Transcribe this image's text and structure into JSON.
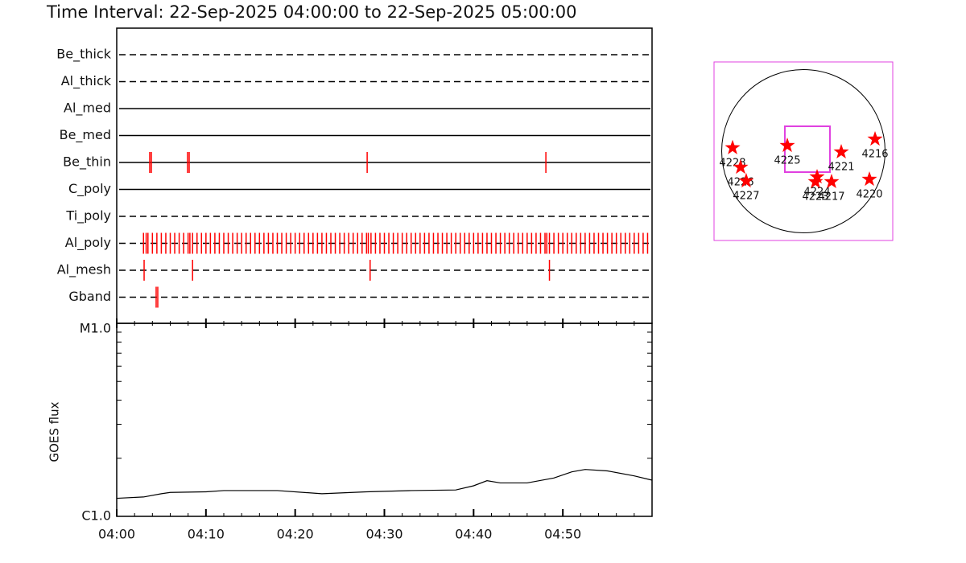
{
  "chart_data": [
    {
      "type": "timeline",
      "title": "Time Interval: 22-Sep-2025 04:00:00 to 22-Sep-2025 05:00:00",
      "xlim": [
        0,
        60
      ],
      "color": "#ff0000",
      "series": [
        {
          "name": "Be_thick",
          "line": "dashed",
          "values": []
        },
        {
          "name": "Al_thick",
          "line": "dashed",
          "values": []
        },
        {
          "name": "Al_med",
          "line": "solid",
          "values": []
        },
        {
          "name": "Be_med",
          "line": "solid",
          "values": []
        },
        {
          "name": "Be_thin",
          "line": "solid",
          "values": [
            3.7,
            3.88,
            7.94,
            8.12,
            28.07,
            48.1
          ]
        },
        {
          "name": "C_poly",
          "line": "solid",
          "values": []
        },
        {
          "name": "Ti_poly",
          "line": "dashed",
          "values": []
        },
        {
          "name": "Al_poly",
          "line": "dashed",
          "values": [
            3,
            3.3,
            3.5,
            4,
            4.5,
            5,
            5.5,
            6,
            6.5,
            7,
            7.5,
            8,
            8.2,
            8.5,
            9,
            9.5,
            10,
            10.5,
            11,
            11.5,
            12,
            12.5,
            13,
            13.5,
            14,
            14.5,
            15,
            15.5,
            16,
            16.5,
            17,
            17.5,
            18,
            18.5,
            19,
            19.5,
            20,
            20.5,
            21,
            21.5,
            22,
            22.5,
            23,
            23.5,
            24,
            24.5,
            25,
            25.5,
            26,
            26.5,
            27,
            27.5,
            28,
            28.2,
            28.5,
            29,
            29.5,
            30,
            30.5,
            31,
            31.5,
            32,
            32.5,
            33,
            33.5,
            34,
            34.5,
            35,
            35.5,
            36,
            36.5,
            37,
            37.5,
            38,
            38.5,
            39,
            39.5,
            40,
            40.5,
            41,
            41.5,
            42,
            42.5,
            43,
            43.5,
            44,
            44.5,
            45,
            45.5,
            46,
            46.5,
            47,
            47.5,
            48,
            48.2,
            48.5,
            49,
            49.5,
            50,
            50.5,
            51,
            51.5,
            52,
            52.5,
            53,
            53.5,
            54,
            54.5,
            55,
            55.5,
            56,
            56.5,
            57,
            57.5,
            58,
            58.5,
            59,
            59.5
          ]
        },
        {
          "name": "Al_mesh",
          "line": "dashed",
          "values": [
            3.07,
            8.5,
            28.4,
            48.5
          ]
        },
        {
          "name": "Gband",
          "line": "dashed",
          "values": [
            4.42,
            4.6
          ]
        }
      ]
    },
    {
      "type": "line",
      "y_label": "GOES flux",
      "log_y": true,
      "color": "#000000",
      "xlim": [
        0,
        60
      ],
      "xticks": [
        {
          "value": 0,
          "label": "04:00"
        },
        {
          "value": 10,
          "label": "04:10"
        },
        {
          "value": 20,
          "label": "04:20"
        },
        {
          "value": 30,
          "label": "04:30"
        },
        {
          "value": 40,
          "label": "04:40"
        },
        {
          "value": 50,
          "label": "04:50"
        }
      ],
      "xminor": [
        2,
        4,
        6,
        8,
        12,
        14,
        16,
        18,
        22,
        24,
        26,
        28,
        32,
        34,
        36,
        38,
        42,
        44,
        46,
        48,
        52,
        54,
        56,
        58
      ],
      "ylim": [
        1e-06,
        1e-05
      ],
      "yticks": [
        {
          "value": 1e-06,
          "label": "C1.0"
        },
        {
          "value": 1e-05,
          "label": "M1.0"
        }
      ],
      "yminor": [
        2e-06,
        3e-06,
        4e-06,
        5e-06,
        6e-06,
        7e-06,
        8e-06,
        9e-06
      ],
      "x": [
        0,
        3,
        5,
        6,
        10,
        12,
        18,
        23,
        28,
        33,
        38,
        40,
        41.5,
        43,
        46,
        49,
        51,
        52.5,
        55,
        58,
        60
      ],
      "values": [
        1.24e-06,
        1.26e-06,
        1.31e-06,
        1.33e-06,
        1.34e-06,
        1.36e-06,
        1.36e-06,
        1.31e-06,
        1.34e-06,
        1.36e-06,
        1.37e-06,
        1.44e-06,
        1.53e-06,
        1.49e-06,
        1.49e-06,
        1.58e-06,
        1.7e-06,
        1.75e-06,
        1.72e-06,
        1.62e-06,
        1.54e-06
      ]
    },
    {
      "type": "map",
      "xlim": [
        -1050,
        1050
      ],
      "ylim": [
        -1050,
        1050
      ],
      "radius": 960,
      "color": "#ff0000",
      "box_color": "#e040e0",
      "fov": {
        "x": [
          -218,
          312
        ],
        "y": [
          -246,
          293
        ]
      },
      "labels": [
        "4228",
        "4226",
        "4227",
        "4225",
        "4221",
        "4216",
        "4224",
        "4223",
        "4217",
        "4220"
      ],
      "x": [
        -832,
        -738,
        -672,
        -189,
        445,
        842,
        161,
        142,
        331,
        776
      ],
      "y": [
        40,
        -189,
        -350,
        66,
        -9,
        142,
        -303,
        -359,
        -359,
        -331
      ]
    }
  ]
}
